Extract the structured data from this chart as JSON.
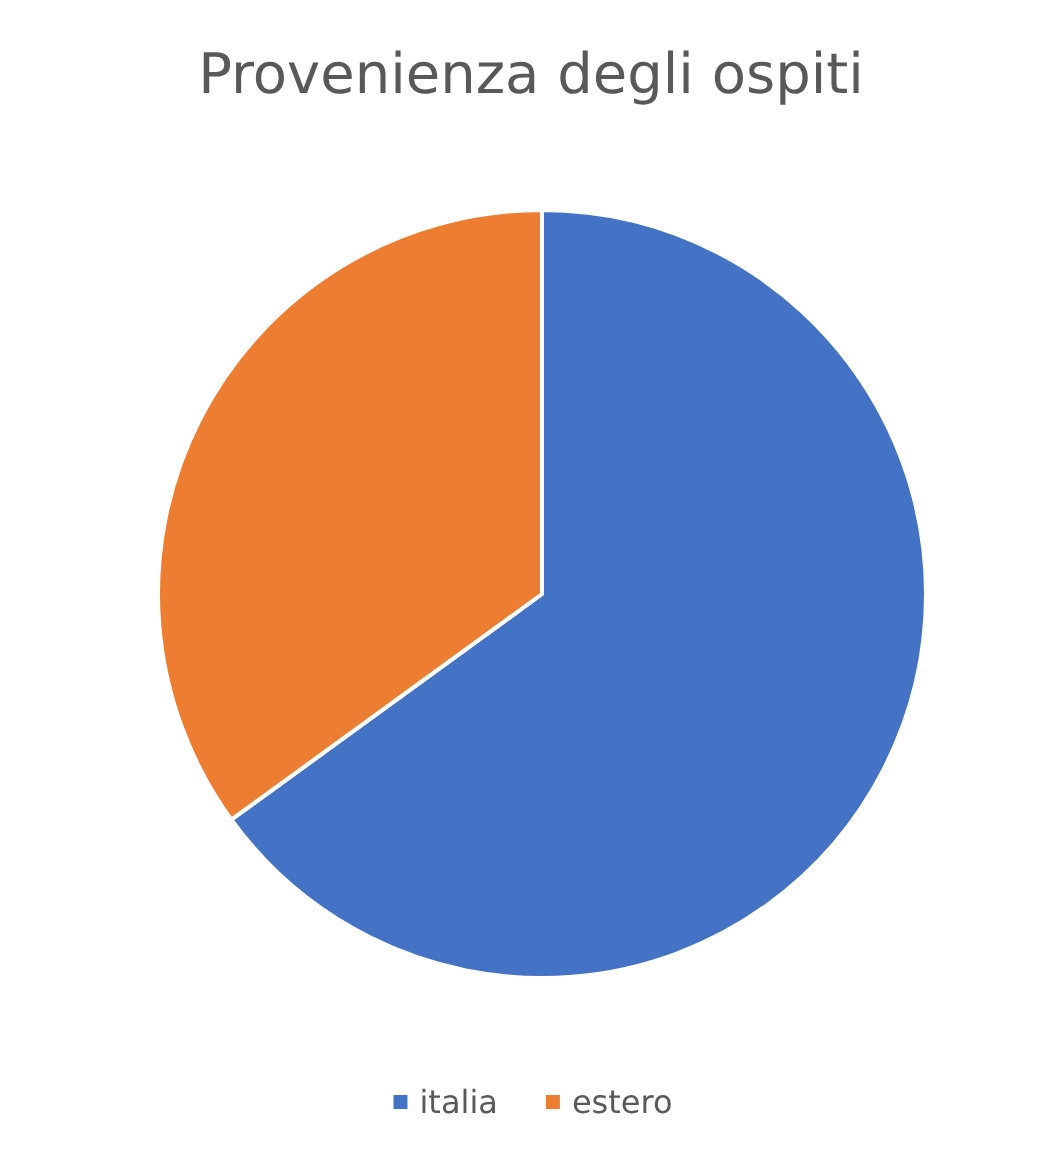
{
  "chart_data": {
    "type": "pie",
    "title": "Provenienza degli ospiti",
    "categories": [
      "italia",
      "estero"
    ],
    "values": [
      65,
      35
    ],
    "colors": [
      "#4472c4",
      "#ed7d31"
    ],
    "legend": "bottom"
  }
}
